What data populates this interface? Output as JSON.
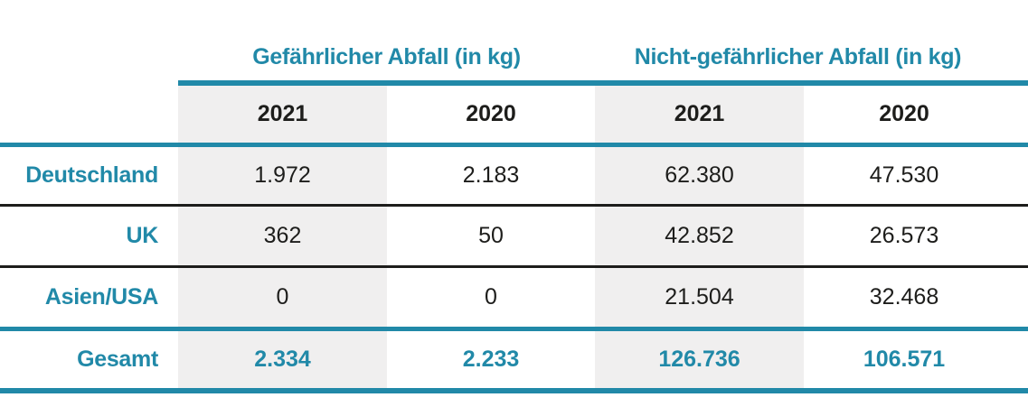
{
  "colors": {
    "accent_teal": "#2189A8",
    "stripe_gray": "#F0EFEF",
    "text_dark": "#1D1D1B",
    "background": "#FFFFFF"
  },
  "table": {
    "column_groups": [
      {
        "label": "Gefährlicher Abfall (in kg)"
      },
      {
        "label": "Nicht-gefährlicher Abfall (in kg)"
      }
    ],
    "year_columns": [
      "2021",
      "2020",
      "2021",
      "2020"
    ],
    "rows": [
      {
        "label": "Deutschland",
        "values": [
          "1.972",
          "2.183",
          "62.380",
          "47.530"
        ]
      },
      {
        "label": "UK",
        "values": [
          "362",
          "50",
          "42.852",
          "26.573"
        ]
      },
      {
        "label": "Asien/USA",
        "values": [
          "0",
          "0",
          "21.504",
          "32.468"
        ]
      }
    ],
    "total_row": {
      "label": "Gesamt",
      "values": [
        "2.334",
        "2.233",
        "126.736",
        "106.571"
      ]
    }
  },
  "chart_data": {
    "type": "table",
    "title": "",
    "column_groups": [
      "Gefährlicher Abfall (in kg)",
      "Nicht-gefährlicher Abfall (in kg)"
    ],
    "columns": [
      "Gefährlicher Abfall (in kg) – 2021",
      "Gefährlicher Abfall (in kg) – 2020",
      "Nicht-gefährlicher Abfall (in kg) – 2021",
      "Nicht-gefährlicher Abfall (in kg) – 2020"
    ],
    "rows": [
      {
        "label": "Deutschland",
        "values": [
          1972,
          2183,
          62380,
          47530
        ]
      },
      {
        "label": "UK",
        "values": [
          362,
          50,
          42852,
          26573
        ]
      },
      {
        "label": "Asien/USA",
        "values": [
          0,
          0,
          21504,
          32468
        ]
      },
      {
        "label": "Gesamt",
        "values": [
          2334,
          2233,
          126736,
          106571
        ]
      }
    ],
    "notes": "2021 columns have light gray background; totals row and row labels in teal bold; thin black rules between data rows; thick teal rules under headers, above totals and at bottom"
  }
}
